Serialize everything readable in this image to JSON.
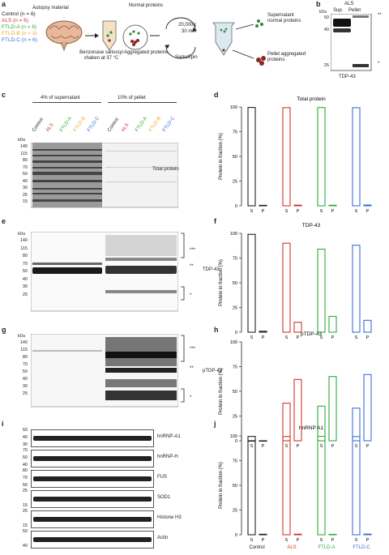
{
  "panel_a": {
    "label": "a",
    "title": "Autopsy material",
    "groups": [
      {
        "name": "Control",
        "n": "(n = 6)",
        "color": "#222222"
      },
      {
        "name": "ALS",
        "n": "(n = 6)",
        "color": "#d2352c"
      },
      {
        "name": "FTLD-A",
        "n": "(n = 6)",
        "color": "#2cae3a"
      },
      {
        "name": "FTLD-B",
        "n": "(n = 3)",
        "color": "#f0a530"
      },
      {
        "name": "FTLD-C",
        "n": "(n = 6)",
        "color": "#3a6fd8"
      }
    ],
    "step1": "Benzonase sarkosyl shaken at 37 °C",
    "normal": "Normal proteins",
    "aggregated": "Aggregated proteins",
    "spin_top": "20,000g",
    "spin_time": "30 min",
    "spin_name": "SarkoSpin",
    "supernatant": "Supernatant normal proteins",
    "pellet": "Pellet aggregated proteins"
  },
  "panel_b": {
    "label": "b",
    "als": "ALS",
    "sup": "Sup.",
    "pel": "Pellet",
    "kda": "kDa",
    "ticks": [
      "50",
      "40",
      "25"
    ],
    "stars2": "**",
    "star1": "*",
    "caption": "TDP-43"
  },
  "panel_c": {
    "label": "c",
    "sup_header": "4% of supernatant",
    "pel_header": "10% of pellet",
    "lanes": [
      "Control",
      "ALS",
      "FTLD-A",
      "FTLD-B",
      "FTLD-C"
    ],
    "kda": "kDa",
    "ticks": [
      "140",
      "115",
      "80",
      "70",
      "50",
      "40",
      "30",
      "25",
      "15"
    ],
    "caption": "Total protein"
  },
  "panel_e": {
    "label": "e",
    "kda": "kDa",
    "ticks": [
      "140",
      "115",
      "80",
      "70",
      "50",
      "40",
      "30",
      "25"
    ],
    "s3": "***",
    "s2": "**",
    "s1": "*",
    "caption": "TDP-43"
  },
  "panel_g": {
    "label": "g",
    "kda": "kDa",
    "ticks": [
      "140",
      "115",
      "80",
      "70",
      "50",
      "40",
      "30",
      "25"
    ],
    "s3": "***",
    "s2": "**",
    "s1": "*",
    "caption": "pTDP-43"
  },
  "panel_i": {
    "label": "i",
    "blots": [
      {
        "name": "hnRNP-A1",
        "ticks": [
          "50",
          "40",
          "30"
        ]
      },
      {
        "name": "hnRNP-H",
        "ticks": [
          "70",
          "50",
          "40"
        ]
      },
      {
        "name": "FUS",
        "ticks": [
          "80",
          "70",
          "50"
        ]
      },
      {
        "name": "SOD1",
        "ticks": [
          "25",
          "15"
        ]
      },
      {
        "name": "Histone H3",
        "ticks": [
          "25",
          "15"
        ]
      },
      {
        "name": "Actin",
        "ticks": [
          "50",
          "40"
        ]
      }
    ]
  },
  "colors": {
    "control": "#222222",
    "als": "#d2352c",
    "ftld_a": "#2cae3a",
    "ftld_b": "#f0a530",
    "ftld_c": "#3a6fd8"
  },
  "chart_data": [
    {
      "panel": "d",
      "type": "bar",
      "title": "Total protein",
      "ylabel": "Protein in fraction (%)",
      "ylim": [
        0,
        100
      ],
      "yticks": [
        "0",
        "25",
        "50",
        "75",
        "100"
      ],
      "categories": [
        "Control",
        "ALS",
        "FTLD-A",
        "FTLD-C"
      ],
      "fraction_labels": [
        "S",
        "P"
      ],
      "series": [
        {
          "name": "S",
          "values": [
            99.5,
            99.3,
            99.4,
            99.2
          ]
        },
        {
          "name": "P",
          "values": [
            0.5,
            0.7,
            0.6,
            0.8
          ]
        }
      ]
    },
    {
      "panel": "f",
      "type": "bar",
      "title": "TDP-43",
      "ylabel": "Protein in fraction (%)",
      "ylim": [
        0,
        100
      ],
      "yticks": [
        "0",
        "25",
        "50",
        "75",
        "100"
      ],
      "categories": [
        "Control",
        "ALS",
        "FTLD-A",
        "FTLD-C"
      ],
      "fraction_labels": [
        "S",
        "P"
      ],
      "series": [
        {
          "name": "S",
          "values": [
            99,
            90,
            84,
            88
          ]
        },
        {
          "name": "P",
          "values": [
            1,
            10,
            16,
            12
          ]
        }
      ]
    },
    {
      "panel": "h",
      "type": "bar",
      "title": "pTDP-43",
      "ylabel": "Protein in fraction (%)",
      "ylim": [
        0,
        100
      ],
      "yticks": [
        "0",
        "25",
        "50",
        "75",
        "100"
      ],
      "categories": [
        "Control",
        "ALS",
        "FTLD-A",
        "FTLD-C"
      ],
      "fraction_labels": [
        "S",
        "P"
      ],
      "series": [
        {
          "name": "S",
          "values": [
            0,
            38,
            35,
            33
          ]
        },
        {
          "name": "P",
          "values": [
            0,
            62,
            65,
            67
          ]
        }
      ]
    },
    {
      "panel": "j",
      "type": "bar",
      "title": "hnRNP A1",
      "ylabel": "Protein in fraction (%)",
      "ylim": [
        0,
        100
      ],
      "yticks": [
        "0",
        "25",
        "50",
        "75",
        "100"
      ],
      "categories": [
        "Control",
        "ALS",
        "FTLD-A",
        "FTLD-C"
      ],
      "fraction_labels": [
        "S",
        "P"
      ],
      "series": [
        {
          "name": "S",
          "values": [
            99.5,
            99.4,
            99.6,
            99.3
          ]
        },
        {
          "name": "P",
          "values": [
            0.5,
            0.6,
            0.4,
            0.7
          ]
        }
      ]
    }
  ]
}
